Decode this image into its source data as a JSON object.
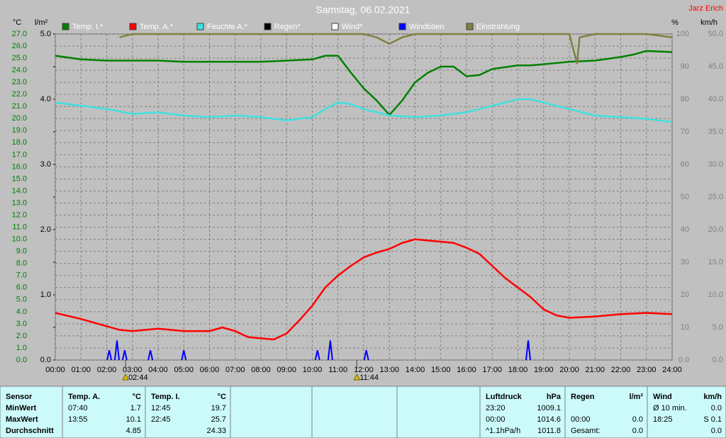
{
  "chart_data": {
    "type": "line",
    "title": "Samstag, 06.02.2021",
    "author": "Jarz Erich",
    "y_label": "°C",
    "y2_label": "l/m²",
    "y3_label": "%",
    "y4_label": "km/h",
    "xlim": [
      0,
      24
    ],
    "xticks": [
      {
        "value": 0,
        "label": "00:00"
      },
      {
        "value": 1,
        "label": "01:00"
      },
      {
        "value": 2,
        "label": "02:00"
      },
      {
        "value": 3,
        "label": "03:00"
      },
      {
        "value": 4,
        "label": "04:00"
      },
      {
        "value": 5,
        "label": "05:00"
      },
      {
        "value": 6,
        "label": "06:00"
      },
      {
        "value": 7,
        "label": "07:00"
      },
      {
        "value": 8,
        "label": "08:00"
      },
      {
        "value": 9,
        "label": "09:00"
      },
      {
        "value": 10,
        "label": "10:00"
      },
      {
        "value": 11,
        "label": "11:00"
      },
      {
        "value": 12,
        "label": "12:00"
      },
      {
        "value": 13,
        "label": "13:00"
      },
      {
        "value": 14,
        "label": "14:00"
      },
      {
        "value": 15,
        "label": "15:00"
      },
      {
        "value": 16,
        "label": "16:00"
      },
      {
        "value": 17,
        "label": "17:00"
      },
      {
        "value": 18,
        "label": "18:00"
      },
      {
        "value": 19,
        "label": "19:00"
      },
      {
        "value": 20,
        "label": "20:00"
      },
      {
        "value": 21,
        "label": "21:00"
      },
      {
        "value": 22,
        "label": "22:00"
      },
      {
        "value": 23,
        "label": "23:00"
      },
      {
        "value": 24,
        "label": "24:00"
      }
    ],
    "ylim": [
      0,
      27
    ],
    "yticks": [
      {
        "value": 0,
        "label": "0.0"
      },
      {
        "value": 1,
        "label": "1.0"
      },
      {
        "value": 2,
        "label": "2.0"
      },
      {
        "value": 3,
        "label": "3.0"
      },
      {
        "value": 4,
        "label": "4.0"
      },
      {
        "value": 5,
        "label": "5.0"
      },
      {
        "value": 6,
        "label": "6.0"
      },
      {
        "value": 7,
        "label": "7.0"
      },
      {
        "value": 8,
        "label": "8.0"
      },
      {
        "value": 9,
        "label": "9.0"
      },
      {
        "value": 10,
        "label": "10.0"
      },
      {
        "value": 11,
        "label": "11.0"
      },
      {
        "value": 12,
        "label": "12.0"
      },
      {
        "value": 13,
        "label": "13.0"
      },
      {
        "value": 14,
        "label": "14.0"
      },
      {
        "value": 15,
        "label": "15.0"
      },
      {
        "value": 16,
        "label": "16.0"
      },
      {
        "value": 17,
        "label": "17.0"
      },
      {
        "value": 18,
        "label": "18.0"
      },
      {
        "value": 19,
        "label": "19.0"
      },
      {
        "value": 20,
        "label": "20.0"
      },
      {
        "value": 21,
        "label": "21.0"
      },
      {
        "value": 22,
        "label": "22.0"
      },
      {
        "value": 23,
        "label": "23.0"
      },
      {
        "value": 24,
        "label": "24.0"
      },
      {
        "value": 25,
        "label": "25.0"
      },
      {
        "value": 26,
        "label": "26.0"
      },
      {
        "value": 27,
        "label": "27.0"
      }
    ],
    "y2lim": [
      0,
      5
    ],
    "y2ticks": [
      {
        "value": 0,
        "label": "0.0"
      },
      {
        "value": 1,
        "label": "1.0"
      },
      {
        "value": 2,
        "label": "2.0"
      },
      {
        "value": 3,
        "label": "3.0"
      },
      {
        "value": 4,
        "label": "4.0"
      },
      {
        "value": 5,
        "label": "5.0"
      }
    ],
    "y3lim": [
      0,
      100
    ],
    "y3ticks": [
      {
        "value": 0,
        "label": "0.0"
      },
      10,
      20,
      30,
      40,
      50,
      60,
      70,
      80,
      90,
      100
    ],
    "y4lim": [
      0,
      50
    ],
    "y4ticks": [
      {
        "value": 0,
        "label": "0.0"
      },
      {
        "value": 5,
        "label": "5.0"
      },
      {
        "value": 10,
        "label": "10.0"
      },
      {
        "value": 15,
        "label": "15.0"
      },
      {
        "value": 20,
        "label": "20.0"
      },
      {
        "value": 25,
        "label": "25.0"
      },
      {
        "value": 30,
        "label": "30.0"
      },
      {
        "value": 35,
        "label": "35.0"
      },
      {
        "value": 40,
        "label": "40.0"
      },
      {
        "value": 45,
        "label": "45.0"
      },
      {
        "value": 50,
        "label": "50.0"
      }
    ],
    "grid": true,
    "series": [
      {
        "name": "Temp. I.*",
        "color": "#008000",
        "axis": "y",
        "x": [
          0,
          1,
          2,
          3,
          4,
          5,
          6,
          7,
          8,
          9,
          10,
          10.5,
          11,
          11.5,
          12,
          12.5,
          13,
          13.5,
          14,
          14.5,
          15,
          15.5,
          16,
          16.5,
          17,
          18,
          18.5,
          19,
          20,
          21,
          22,
          22.5,
          23,
          24
        ],
        "values": [
          25.2,
          24.9,
          24.8,
          24.8,
          24.8,
          24.7,
          24.7,
          24.7,
          24.7,
          24.8,
          24.9,
          25.2,
          25.2,
          23.8,
          22.5,
          21.5,
          20.3,
          21.5,
          23.0,
          23.8,
          24.3,
          24.3,
          23.5,
          23.6,
          24.1,
          24.4,
          24.4,
          24.5,
          24.7,
          24.8,
          25.1,
          25.3,
          25.6,
          25.5
        ]
      },
      {
        "name": "Temp. A.*",
        "color": "#ff0000",
        "axis": "y",
        "x": [
          0,
          1,
          2,
          2.5,
          3,
          4,
          5,
          6,
          6.5,
          7,
          7.5,
          8,
          8.5,
          9,
          9.5,
          10,
          10.5,
          11,
          11.5,
          12,
          12.5,
          13,
          13.5,
          14,
          14.5,
          15,
          15.5,
          16,
          16.5,
          17,
          17.5,
          18,
          18.5,
          19,
          19.5,
          20,
          21,
          22,
          23,
          24
        ],
        "values": [
          3.9,
          3.4,
          2.8,
          2.5,
          2.4,
          2.6,
          2.4,
          2.4,
          2.7,
          2.4,
          1.9,
          1.8,
          1.7,
          2.2,
          3.3,
          4.5,
          6.0,
          7.0,
          7.8,
          8.5,
          8.9,
          9.2,
          9.7,
          10.0,
          9.9,
          9.8,
          9.7,
          9.3,
          8.8,
          7.8,
          6.8,
          6.0,
          5.2,
          4.2,
          3.7,
          3.5,
          3.6,
          3.8,
          3.9,
          3.8
        ]
      },
      {
        "name": "Feuchte A.*",
        "color": "#40e0e0",
        "axis": "y3",
        "x": [
          0,
          1,
          2,
          3,
          4,
          5,
          6,
          7,
          8,
          9,
          10,
          10.5,
          11,
          11.5,
          12,
          13,
          14,
          15,
          16,
          17,
          18,
          18.5,
          19,
          20,
          21,
          22,
          23,
          24
        ],
        "values": [
          79,
          78,
          77,
          75.5,
          76,
          75,
          74.5,
          75,
          74.5,
          73.5,
          74.5,
          77,
          79,
          78.5,
          77,
          75,
          74.5,
          75,
          76,
          78,
          80,
          80,
          79,
          77,
          75,
          74.5,
          74,
          73
        ]
      },
      {
        "name": "Regen*",
        "color": "#000000",
        "axis": "y2"
      },
      {
        "name": "Wind*",
        "color": "#ffffff",
        "axis": "y4"
      },
      {
        "name": "Windböen",
        "color": "#0000ff",
        "axis": "y4",
        "style": "spikes",
        "x": [
          2.1,
          2.4,
          2.7,
          3.7,
          5.0,
          10.2,
          10.7,
          12.1,
          18.4
        ],
        "values": [
          1.5,
          3.0,
          1.5,
          1.5,
          1.5,
          1.5,
          3.0,
          1.5,
          3.0
        ]
      },
      {
        "name": "Einstrahlung",
        "color": "#808040",
        "axis": "y3",
        "x": [
          2.5,
          3,
          4,
          5,
          6,
          7,
          8,
          9,
          10,
          11,
          12,
          12.5,
          13,
          13.5,
          14,
          15,
          16,
          17,
          18,
          19,
          20,
          20.3,
          20.4,
          21,
          22,
          23,
          24
        ],
        "values": [
          99,
          100,
          100,
          100,
          100,
          100,
          100,
          100,
          100,
          100,
          100,
          99,
          97,
          99,
          100,
          100,
          100,
          100,
          100,
          100,
          100,
          91,
          99,
          100,
          100,
          100,
          99
        ]
      }
    ],
    "annotations": [
      {
        "text": "02:44",
        "x": 2.733
      },
      {
        "text": "11:44",
        "x": 11.733
      }
    ]
  },
  "table": {
    "panels": [
      {
        "header": [
          "Sensor"
        ],
        "rows": [
          [
            "MinWert"
          ],
          [
            "MaxWert"
          ],
          [
            "Durchschnitt"
          ]
        ]
      },
      {
        "header": [
          "Temp. A.",
          "°C"
        ],
        "rows": [
          [
            "07:40",
            "1.7"
          ],
          [
            "13:55",
            "10.1"
          ],
          [
            null,
            "4.85"
          ]
        ]
      },
      {
        "header": [
          "Temp. I.",
          "°C"
        ],
        "rows": [
          [
            "12:45",
            "19.7"
          ],
          [
            "22:45",
            "25.7"
          ],
          [
            null,
            "24.33"
          ]
        ]
      },
      {
        "header": [
          "Luftdruck",
          "hPa"
        ],
        "rows": [
          [
            "23:20",
            "1009.1"
          ],
          [
            "00:00",
            "1014.6"
          ],
          [
            "^1.1hPa/h",
            "1011.8"
          ]
        ]
      },
      {
        "header": [
          "Regen",
          "l/m²"
        ],
        "rows": [
          [
            null,
            null
          ],
          [
            "00:00",
            "0.0"
          ],
          [
            "Gesamt:",
            "0.0"
          ]
        ]
      },
      {
        "header": [
          "Wind",
          "km/h"
        ],
        "rows": [
          [
            "Ø 10 min.",
            "0.0"
          ],
          [
            "18:25",
            "S 0.1"
          ],
          [
            null,
            "0.0"
          ]
        ]
      }
    ]
  }
}
